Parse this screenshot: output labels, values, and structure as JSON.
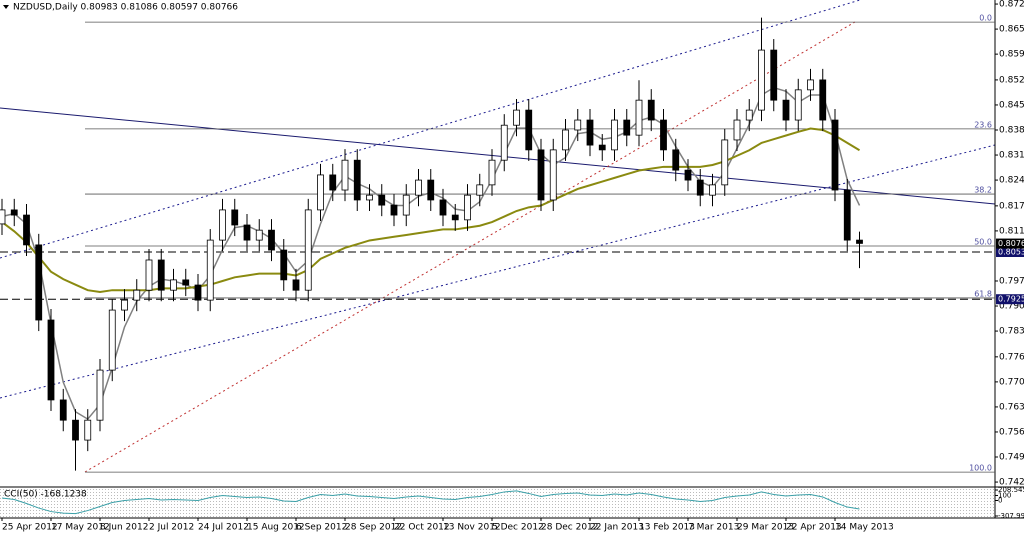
{
  "chart_data": {
    "type": "candlestick",
    "title": "NZDUSD,Daily  0.80983 0.81086 0.80597 0.80766",
    "categories": [
      "25 Apr 2012",
      null,
      null,
      null,
      "17 May 2012",
      null,
      null,
      null,
      "8 Jun 2012",
      null,
      null,
      null,
      "2 Jul 2012",
      null,
      null,
      null,
      "24 Jul 2012",
      null,
      null,
      null,
      "15 Aug 2012",
      null,
      null,
      null,
      "6 Sep 2012",
      null,
      null,
      null,
      "28 Sep 2012",
      null,
      null,
      null,
      "22 Oct 2012",
      null,
      null,
      null,
      "13 Nov 2012",
      null,
      null,
      null,
      "5 Dec 2012",
      null,
      null,
      null,
      "28 Dec 2012",
      null,
      null,
      null,
      "22 Jan 2013",
      null,
      null,
      null,
      "13 Feb 2013",
      null,
      null,
      null,
      "7 Mar 2013",
      null,
      null,
      null,
      "29 Mar 2013",
      null,
      null,
      null,
      "22 Apr 2013",
      null,
      null,
      null,
      "14 May 2013",
      null,
      null
    ],
    "open": [
      0.813,
      0.8168,
      0.8154,
      0.8073,
      0.7869,
      0.7652,
      0.7597,
      0.7543,
      0.7597,
      0.7733,
      0.7896,
      0.7923,
      0.795,
      0.8032,
      0.795,
      0.7978,
      0.7964,
      0.7923,
      0.8086,
      0.8168,
      0.8127,
      0.8086,
      0.8113,
      0.8059,
      0.7978,
      0.795,
      0.8168,
      0.8263,
      0.8222,
      0.8303,
      0.8195,
      0.8208,
      0.8181,
      0.8154,
      0.8208,
      0.8249,
      0.8195,
      0.8154,
      0.8141,
      0.8208,
      0.8236,
      0.8303,
      0.8398,
      0.8439,
      0.8331,
      0.8195,
      0.8331,
      0.8385,
      0.8412,
      0.8344,
      0.8331,
      0.8412,
      0.8371,
      0.8466,
      0.8412,
      0.8331,
      0.8276,
      0.8249,
      0.8208,
      0.8236,
      0.8358,
      0.8412,
      0.8439,
      0.8602,
      0.8466,
      0.8412,
      0.8494,
      0.8521,
      0.8412,
      0.8222,
      0.8086
    ],
    "high": [
      0.8198,
      0.8198,
      0.8184,
      0.8103,
      0.7899,
      0.7682,
      0.7627,
      0.7627,
      0.7763,
      0.7926,
      0.7953,
      0.798,
      0.8062,
      0.8062,
      0.8008,
      0.8008,
      0.7994,
      0.8116,
      0.8198,
      0.8198,
      0.8157,
      0.8143,
      0.8143,
      0.8089,
      0.8008,
      0.8198,
      0.8293,
      0.8293,
      0.8333,
      0.8333,
      0.8238,
      0.8238,
      0.8211,
      0.8238,
      0.8279,
      0.8279,
      0.8225,
      0.8184,
      0.8238,
      0.8266,
      0.8333,
      0.8428,
      0.8469,
      0.8469,
      0.8361,
      0.8361,
      0.8415,
      0.8442,
      0.8442,
      0.8374,
      0.8442,
      0.8442,
      0.852,
      0.8496,
      0.8442,
      0.8361,
      0.8306,
      0.8279,
      0.8266,
      0.8388,
      0.8442,
      0.8469,
      0.869,
      0.8632,
      0.8496,
      0.8524,
      0.8551,
      0.8551,
      0.8442,
      0.8252,
      0.8109
    ],
    "low": [
      0.81,
      0.8124,
      0.8043,
      0.7839,
      0.7622,
      0.7567,
      0.746,
      0.7513,
      0.7567,
      0.7703,
      0.7866,
      0.7893,
      0.792,
      0.792,
      0.792,
      0.7934,
      0.7893,
      0.7893,
      0.8056,
      0.8097,
      0.8056,
      0.8056,
      0.8029,
      0.7948,
      0.792,
      0.792,
      0.8138,
      0.8192,
      0.8192,
      0.8165,
      0.8165,
      0.8151,
      0.8124,
      0.8124,
      0.8178,
      0.8165,
      0.8124,
      0.8111,
      0.8111,
      0.8178,
      0.8206,
      0.8273,
      0.8368,
      0.8301,
      0.8165,
      0.8165,
      0.8301,
      0.8355,
      0.8314,
      0.8301,
      0.8301,
      0.8341,
      0.8341,
      0.8382,
      0.8301,
      0.8246,
      0.8219,
      0.8178,
      0.8178,
      0.8206,
      0.8328,
      0.8382,
      0.8409,
      0.8436,
      0.8382,
      0.8382,
      0.8464,
      0.8382,
      0.8192,
      0.8056,
      0.801
    ],
    "close": [
      0.8168,
      0.8154,
      0.8073,
      0.7869,
      0.7652,
      0.7597,
      0.7543,
      0.7597,
      0.7733,
      0.7896,
      0.7923,
      0.795,
      0.8032,
      0.795,
      0.7978,
      0.7964,
      0.7923,
      0.8086,
      0.8168,
      0.8127,
      0.8086,
      0.8113,
      0.8059,
      0.7978,
      0.795,
      0.8168,
      0.8263,
      0.8222,
      0.8303,
      0.8195,
      0.8208,
      0.8181,
      0.8154,
      0.8208,
      0.8249,
      0.8195,
      0.8154,
      0.8141,
      0.8208,
      0.8236,
      0.8303,
      0.8398,
      0.8439,
      0.8331,
      0.8195,
      0.8331,
      0.8385,
      0.8412,
      0.8344,
      0.8331,
      0.8412,
      0.8371,
      0.8466,
      0.8412,
      0.8331,
      0.8276,
      0.8249,
      0.8208,
      0.8236,
      0.8358,
      0.8412,
      0.8439,
      0.8602,
      0.8466,
      0.8412,
      0.8494,
      0.8521,
      0.8412,
      0.8222,
      0.8086,
      0.8077
    ],
    "overlays": [
      {
        "color": "#808080",
        "values": [
          0.815,
          0.8158,
          0.813,
          0.803,
          0.786,
          0.77,
          0.762,
          0.76,
          0.764,
          0.774,
          0.785,
          0.792,
          0.796,
          0.798,
          0.7975,
          0.7965,
          0.795,
          0.799,
          0.806,
          0.812,
          0.8125,
          0.811,
          0.809,
          0.805,
          0.8,
          0.803,
          0.813,
          0.8215,
          0.826,
          0.824,
          0.8225,
          0.82,
          0.818,
          0.818,
          0.8205,
          0.8215,
          0.82,
          0.817,
          0.8165,
          0.819,
          0.825,
          0.832,
          0.839,
          0.839,
          0.832,
          0.829,
          0.831,
          0.8375,
          0.838,
          0.836,
          0.8365,
          0.838,
          0.841,
          0.842,
          0.84,
          0.834,
          0.8285,
          0.8245,
          0.823,
          0.827,
          0.8335,
          0.84,
          0.848,
          0.85,
          0.849,
          0.846,
          0.848,
          0.848,
          0.838,
          0.825,
          0.818
        ]
      },
      {
        "color": "#8a8a10",
        "values": [
          0.8135,
          0.811,
          0.808,
          0.804,
          0.8,
          0.798,
          0.7965,
          0.795,
          0.7945,
          0.795,
          0.795,
          0.795,
          0.795,
          0.7955,
          0.7955,
          0.7955,
          0.796,
          0.7965,
          0.7975,
          0.7985,
          0.799,
          0.7995,
          0.7995,
          0.7995,
          0.799,
          0.8005,
          0.8035,
          0.805,
          0.8065,
          0.8075,
          0.8085,
          0.809,
          0.8095,
          0.81,
          0.8105,
          0.811,
          0.8115,
          0.8115,
          0.812,
          0.8125,
          0.8135,
          0.815,
          0.8165,
          0.8175,
          0.818,
          0.8195,
          0.821,
          0.8225,
          0.8235,
          0.8245,
          0.8255,
          0.8265,
          0.8275,
          0.828,
          0.8285,
          0.8285,
          0.8285,
          0.8285,
          0.829,
          0.83,
          0.8315,
          0.833,
          0.835,
          0.836,
          0.837,
          0.838,
          0.8389,
          0.8385,
          0.837,
          0.835,
          0.833
        ]
      }
    ],
    "ylim": [
      0.7421,
      0.8738
    ],
    "yticks": [
      {
        "value": 0.8727,
        "label": "0.87270"
      },
      {
        "value": 0.8659,
        "label": "0.86590"
      },
      {
        "value": 0.8591,
        "label": "0.85910"
      },
      {
        "value": 0.8521,
        "label": "0.85210"
      },
      {
        "value": 0.8453,
        "label": "0.84530"
      },
      {
        "value": 0.8385,
        "label": "0.83850"
      },
      {
        "value": 0.8317,
        "label": "0.83170"
      },
      {
        "value": 0.8249,
        "label": "0.82490"
      },
      {
        "value": 0.8179,
        "label": "0.81790"
      },
      {
        "value": 0.8111,
        "label": "0.81110"
      },
      {
        "value": 0.7975,
        "label": "0.79750"
      },
      {
        "value": 0.7907,
        "label": "0.79070"
      },
      {
        "value": 0.7839,
        "label": "0.78390"
      },
      {
        "value": 0.7769,
        "label": "0.77690"
      },
      {
        "value": 0.7701,
        "label": "0.77010"
      },
      {
        "value": 0.7633,
        "label": "0.76330"
      },
      {
        "value": 0.7565,
        "label": "0.75650"
      },
      {
        "value": 0.7497,
        "label": "0.74970"
      },
      {
        "value": 0.7429,
        "label": "0.74290"
      }
    ],
    "levels": [
      {
        "label": "0.0",
        "value": 0.8678
      },
      {
        "label": "23.6",
        "value": 0.8388
      },
      {
        "label": "38.2",
        "value": 0.8211
      },
      {
        "label": "50.0",
        "value": 0.807
      },
      {
        "label": "61.8",
        "value": 0.7929
      },
      {
        "label": "100.0",
        "value": 0.7456
      }
    ],
    "price_lines": [
      0.80537,
      0.79255
    ],
    "current_price": 0.80766,
    "indicator": {
      "title": "CCI(50) -168.1238",
      "color": "#3aa0a8",
      "values": [
        50,
        20,
        -60,
        -150,
        -220,
        -250,
        -260,
        -200,
        -120,
        -40,
        0,
        20,
        40,
        10,
        20,
        10,
        0,
        60,
        100,
        80,
        60,
        70,
        40,
        -10,
        -20,
        60,
        120,
        100,
        130,
        90,
        80,
        60,
        40,
        70,
        90,
        60,
        30,
        20,
        60,
        80,
        120,
        170,
        190,
        140,
        80,
        120,
        140,
        150,
        110,
        100,
        130,
        110,
        150,
        120,
        70,
        30,
        10,
        -20,
        0,
        60,
        90,
        110,
        170,
        120,
        90,
        110,
        120,
        70,
        -40,
        -130,
        -168.1238
      ],
      "ylim": [
        -307.996,
        208.5457
      ],
      "yticks": [
        208.5457,
        100,
        0,
        -307.996
      ]
    }
  }
}
